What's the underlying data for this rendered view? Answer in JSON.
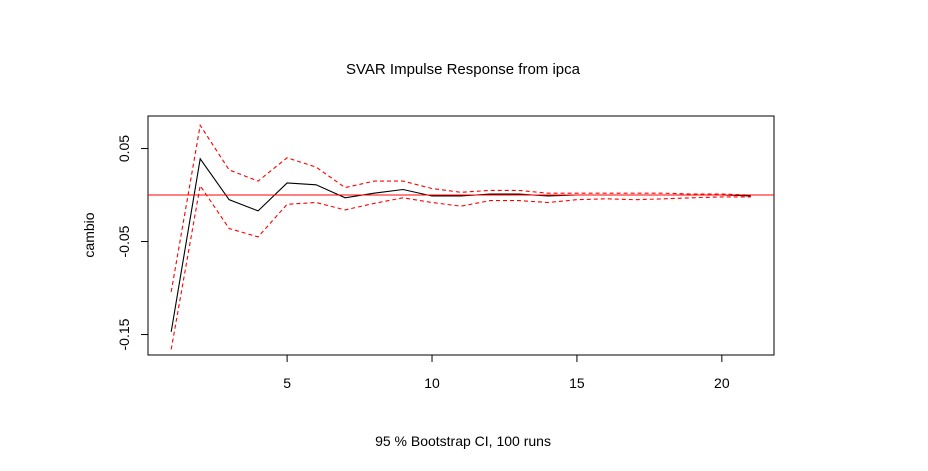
{
  "chart_data": {
    "type": "line",
    "title": "SVAR Impulse Response from ipca",
    "xlabel": "95 % Bootstrap CI,  100 runs",
    "ylabel": "cambio",
    "xlim": [
      0.2,
      21.8
    ],
    "ylim": [
      -0.172,
      0.085
    ],
    "x_ticks": [
      5,
      10,
      15,
      20
    ],
    "y_ticks": [
      0.05,
      -0.05,
      -0.15
    ],
    "y_tick_labels": [
      "0.05",
      "-0.05",
      "-0.15"
    ],
    "x": [
      1,
      2,
      3,
      4,
      5,
      6,
      7,
      8,
      9,
      10,
      11,
      12,
      13,
      14,
      15,
      16,
      17,
      18,
      19,
      20,
      21
    ],
    "series": [
      {
        "role": "response",
        "color": "#000000",
        "dash": "solid",
        "values": [
          -0.147,
          0.039,
          -0.005,
          -0.017,
          0.013,
          0.011,
          -0.003,
          0.002,
          0.006,
          -0.001,
          -0.001,
          0.001,
          0.001,
          -0.001,
          0.0,
          0.0,
          0.0,
          0.0,
          0.0,
          0.0,
          -0.001
        ]
      },
      {
        "role": "upper",
        "color": "#ff0000",
        "dash": "dashed",
        "values": [
          -0.104,
          0.075,
          0.027,
          0.015,
          0.04,
          0.03,
          0.008,
          0.015,
          0.015,
          0.007,
          0.003,
          0.005,
          0.005,
          0.002,
          0.002,
          0.002,
          0.002,
          0.002,
          0.001,
          0.001,
          0.0
        ]
      },
      {
        "role": "lower",
        "color": "#ff0000",
        "dash": "dashed",
        "values": [
          -0.166,
          0.01,
          -0.036,
          -0.045,
          -0.01,
          -0.008,
          -0.016,
          -0.009,
          -0.003,
          -0.008,
          -0.012,
          -0.006,
          -0.006,
          -0.008,
          -0.005,
          -0.004,
          -0.005,
          -0.004,
          -0.003,
          -0.002,
          -0.002
        ]
      }
    ],
    "reference_line": {
      "y": 0,
      "color": "#ff0000"
    },
    "grid": false
  }
}
